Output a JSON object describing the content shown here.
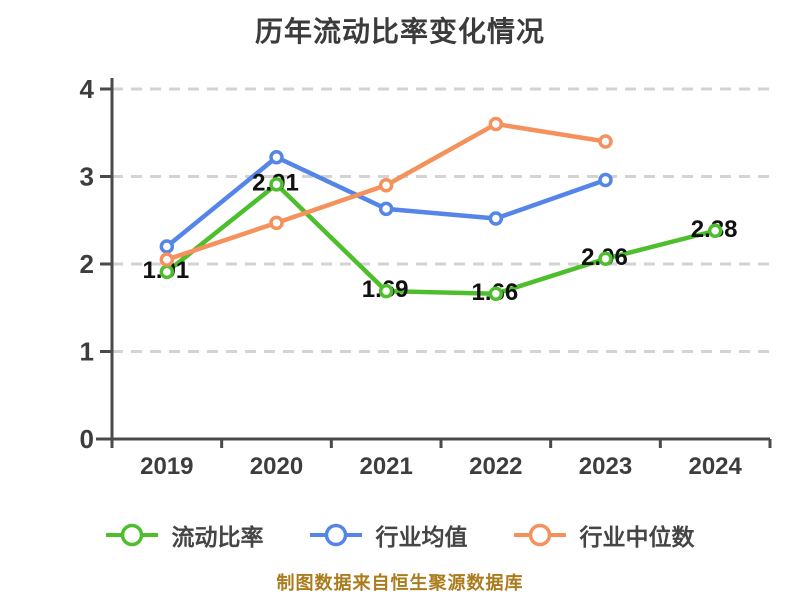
{
  "chart_data": {
    "type": "line",
    "title": "历年流动比率变化情况",
    "footer": "制图数据来自恒生聚源数据库",
    "categories": [
      "2019",
      "2020",
      "2021",
      "2022",
      "2023",
      "2024"
    ],
    "series": [
      {
        "name": "流动比率",
        "color": "#4dbe2c",
        "values": [
          1.91,
          2.91,
          1.69,
          1.66,
          2.06,
          2.38
        ],
        "data_labels": [
          "1.91",
          "2.91",
          "1.69",
          "1.66",
          "2.06",
          "2.38"
        ]
      },
      {
        "name": "行业均值",
        "color": "#5585e8",
        "values": [
          2.2,
          3.22,
          2.63,
          2.52,
          2.96,
          null
        ],
        "data_labels": []
      },
      {
        "name": "行业中位数",
        "color": "#f5915c",
        "values": [
          2.05,
          2.47,
          2.9,
          3.6,
          3.4,
          null
        ],
        "data_labels": []
      }
    ],
    "ylim": [
      0,
      4
    ],
    "yticks": [
      0,
      1,
      2,
      3,
      4
    ],
    "xlabel": "",
    "ylabel": "",
    "grid": "horizontal-dashed",
    "legend_position": "bottom",
    "marker": "circle-white-fill",
    "colors": {
      "background": "#ffffff",
      "axis": "#4a4a4a",
      "grid": "#d3d3d3",
      "tick_text": "#3d3d3d",
      "data_label": "#111111",
      "title": "#3b3b3b",
      "legend_text": "#454545",
      "footer": "#ab7c1e"
    }
  }
}
